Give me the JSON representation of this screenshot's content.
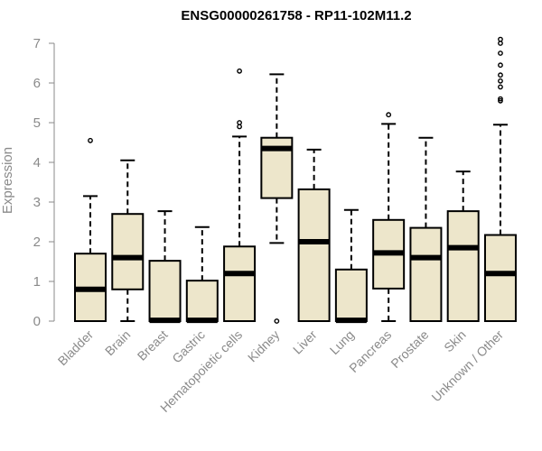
{
  "chart_data": {
    "type": "box",
    "title": "ENSG00000261758 - RP11-102M11.2",
    "xlabel": "",
    "ylabel": "Expression",
    "ylim": [
      0,
      7
    ],
    "yticks": [
      0,
      1,
      2,
      3,
      4,
      5,
      6,
      7
    ],
    "box_fill": "#ede6cb",
    "categories": [
      "Bladder",
      "Brain",
      "Breast",
      "Gastric",
      "Hematopoietic cells",
      "Kidney",
      "Liver",
      "Lung",
      "Pancreas",
      "Prostate",
      "Skin",
      "Unknown / Other"
    ],
    "boxes": [
      {
        "min": 0,
        "q1": 0,
        "median": 0.8,
        "q3": 1.7,
        "max": 3.15,
        "outliers": [
          4.55
        ]
      },
      {
        "min": 0,
        "q1": 0.8,
        "median": 1.6,
        "q3": 2.7,
        "max": 4.05,
        "outliers": []
      },
      {
        "min": 0,
        "q1": 0,
        "median": 0.02,
        "q3": 1.52,
        "max": 2.77,
        "outliers": []
      },
      {
        "min": 0,
        "q1": 0,
        "median": 0.02,
        "q3": 1.02,
        "max": 2.37,
        "outliers": []
      },
      {
        "min": 0,
        "q1": 0,
        "median": 1.2,
        "q3": 1.88,
        "max": 4.65,
        "outliers": [
          4.9,
          5.0,
          6.3
        ]
      },
      {
        "min": 1.97,
        "q1": 3.1,
        "median": 4.35,
        "q3": 4.62,
        "max": 6.22,
        "outliers": [
          0
        ]
      },
      {
        "min": 0,
        "q1": 0,
        "median": 2.0,
        "q3": 3.32,
        "max": 4.32,
        "outliers": []
      },
      {
        "min": 0,
        "q1": 0,
        "median": 0.02,
        "q3": 1.3,
        "max": 2.8,
        "outliers": []
      },
      {
        "min": 0,
        "q1": 0.82,
        "median": 1.72,
        "q3": 2.55,
        "max": 4.97,
        "outliers": [
          5.2
        ]
      },
      {
        "min": 0,
        "q1": 0,
        "median": 1.6,
        "q3": 2.35,
        "max": 4.62,
        "outliers": []
      },
      {
        "min": 0,
        "q1": 0,
        "median": 1.85,
        "q3": 2.77,
        "max": 3.77,
        "outliers": []
      },
      {
        "min": 0,
        "q1": 0,
        "median": 1.2,
        "q3": 2.17,
        "max": 4.95,
        "outliers": [
          5.55,
          5.6,
          5.9,
          6.05,
          6.2,
          6.45,
          6.75,
          7.0,
          7.1
        ]
      }
    ]
  }
}
